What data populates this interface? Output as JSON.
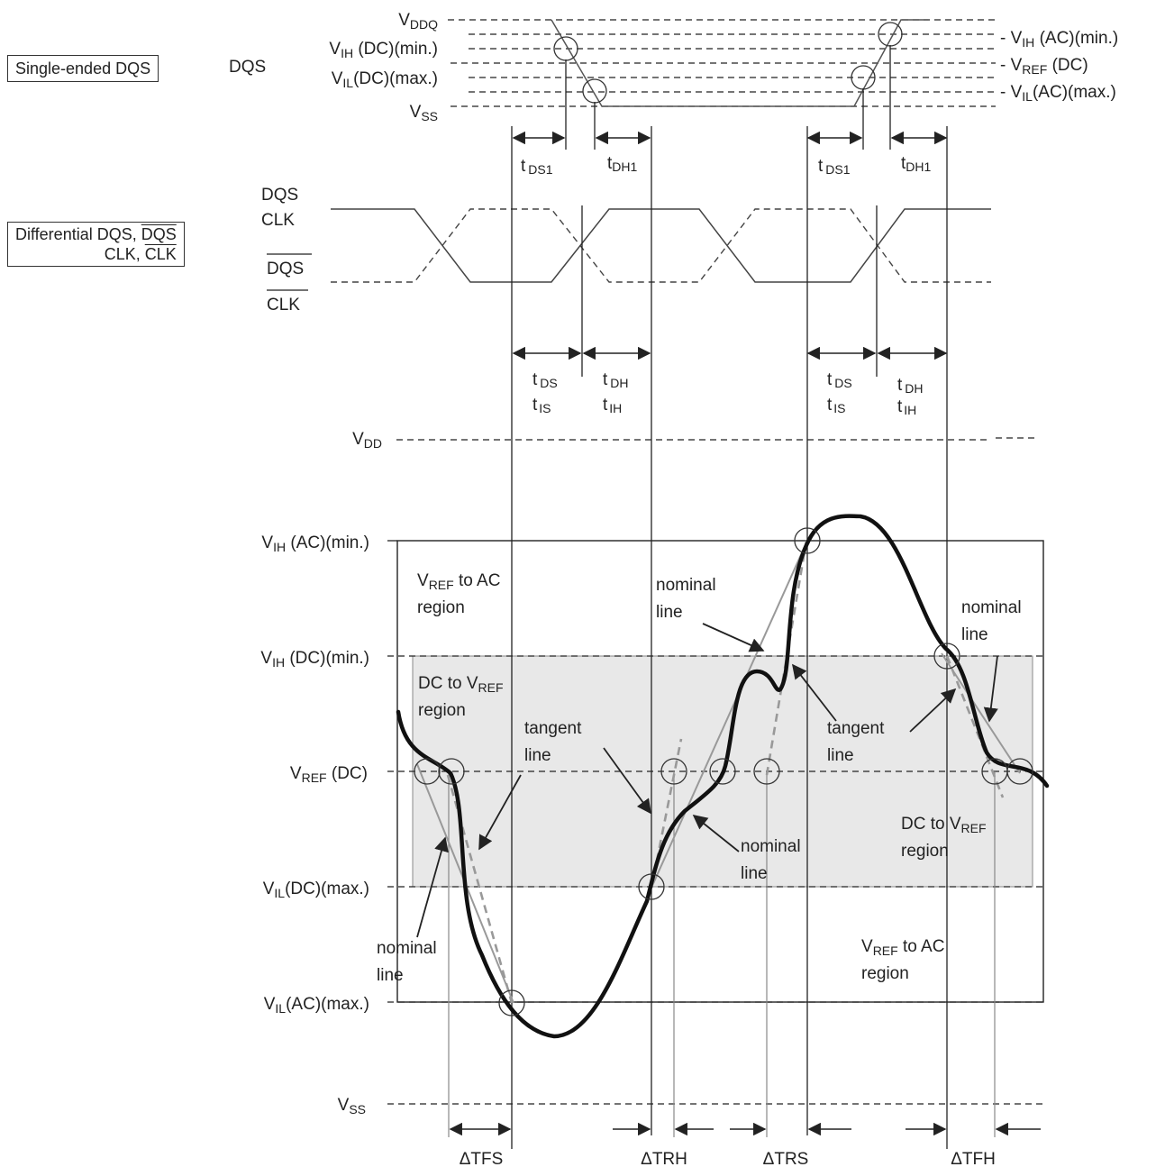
{
  "single_ended_box": "Single-ended DQS",
  "differential_box": {
    "line1_prefix": "Differential DQS, ",
    "line1_bar": "DQS",
    "line2_prefix": "CLK, ",
    "line2_bar": "CLK"
  },
  "dqs_label": "DQS",
  "diff_top_labels": [
    "DQS",
    "CLK"
  ],
  "diff_bottom_labels": [
    "DQS",
    "CLK"
  ],
  "top_levels_left": [
    {
      "main": "V",
      "sub": "DDQ",
      "rest": ""
    },
    {
      "main": "V",
      "sub": "IH",
      "rest": " (DC)(min.)"
    },
    {
      "main": "V",
      "sub": "IL",
      "rest": "(DC)(max.)"
    },
    {
      "main": "V",
      "sub": "SS",
      "rest": ""
    }
  ],
  "top_levels_right": [
    {
      "main": "V",
      "sub": "IH",
      "rest": " (AC)(min.)"
    },
    {
      "main": "V",
      "sub": "REF",
      "rest": " (DC)"
    },
    {
      "main": "V",
      "sub": "IL",
      "rest": "(AC)(max.)"
    }
  ],
  "timing_top": [
    "t",
    "DS1",
    "t",
    "DH1"
  ],
  "timing_mid": {
    "ds": "t",
    "ds_sub": "DS",
    "is": "t",
    "is_sub": "IS",
    "dh": "t",
    "dh_sub": "DH",
    "ih": "t",
    "ih_sub": "IH"
  },
  "bottom_levels": [
    {
      "main": "V",
      "sub": "DD",
      "rest": ""
    },
    {
      "main": "V",
      "sub": "IH",
      "rest": " (AC)(min.)"
    },
    {
      "main": "V",
      "sub": "IH",
      "rest": " (DC)(min.)"
    },
    {
      "main": "V",
      "sub": "REF",
      "rest": " (DC)"
    },
    {
      "main": "V",
      "sub": "IL",
      "rest": "(DC)(max.)"
    },
    {
      "main": "V",
      "sub": "IL",
      "rest": "(AC)(max.)"
    },
    {
      "main": "V",
      "sub": "SS",
      "rest": ""
    }
  ],
  "region_labels": {
    "vref_to_ac_1": [
      "V",
      "REF",
      "  to AC",
      "region"
    ],
    "dc_to_vref_1": [
      "DC to  V",
      "REF",
      "region"
    ],
    "dc_to_vref_2": [
      "DC to  V",
      "REF",
      "region"
    ],
    "vref_to_ac_2": [
      "V",
      "REF",
      "  to AC",
      "region"
    ]
  },
  "annotations": {
    "nominal": [
      "nominal",
      "line"
    ],
    "tangent": [
      "tangent",
      "line"
    ]
  },
  "delta_labels": [
    "ΔTFS",
    "ΔTRH",
    "ΔTRS",
    "ΔTFH"
  ],
  "colors": {
    "ink": "#222222",
    "gray": "#999999",
    "region_fill": "#e8e8e8"
  }
}
